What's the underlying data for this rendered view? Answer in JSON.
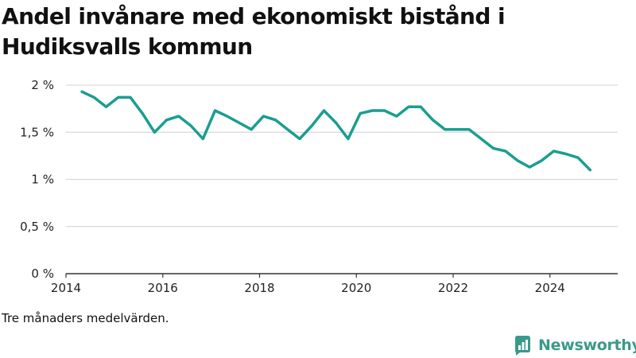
{
  "title": "Andel invånare med ekonomiskt bistånd i Hudiksvalls kommun",
  "caption": "Tre månaders medelvärden.",
  "brand": {
    "name": "Newsworthy",
    "icon": "newsworthy-logo-icon",
    "color": "#3a9a8a"
  },
  "colors": {
    "line": "#1a9e8f",
    "grid": "#d9d9d9",
    "axis": "#333333"
  },
  "chart_data": {
    "type": "line",
    "title": "Andel invånare med ekonomiskt bistånd i Hudiksvalls kommun",
    "xlabel": "",
    "ylabel": "",
    "xlim": [
      2014,
      2025.4
    ],
    "ylim": [
      0,
      2
    ],
    "x_ticks": [
      2014,
      2016,
      2018,
      2020,
      2022,
      2024
    ],
    "x_tick_labels": [
      "2014",
      "2016",
      "2018",
      "2020",
      "2022",
      "2024"
    ],
    "y_ticks": [
      0,
      0.5,
      1,
      1.5,
      2
    ],
    "y_tick_labels": [
      "0 %",
      "0,5 %",
      "1 %",
      "1,5 %",
      "2 %"
    ],
    "grid": true,
    "series": [
      {
        "x": [
          2014.33,
          2014.58,
          2014.83,
          2015.08,
          2015.33,
          2015.58,
          2015.83,
          2016.08,
          2016.33,
          2016.58,
          2016.83,
          2017.08,
          2017.33,
          2017.58,
          2017.83,
          2018.08,
          2018.33,
          2018.58,
          2018.83,
          2019.08,
          2019.33,
          2019.58,
          2019.83,
          2020.08,
          2020.33,
          2020.58,
          2020.83,
          2021.08,
          2021.33,
          2021.58,
          2021.83,
          2022.08,
          2022.33,
          2022.58,
          2022.83,
          2023.08,
          2023.33,
          2023.58,
          2023.83,
          2024.08,
          2024.33,
          2024.58,
          2024.83
        ],
        "values": [
          1.93,
          1.87,
          1.77,
          1.87,
          1.87,
          1.7,
          1.5,
          1.63,
          1.67,
          1.57,
          1.43,
          1.73,
          1.67,
          1.6,
          1.53,
          1.67,
          1.63,
          1.53,
          1.43,
          1.57,
          1.73,
          1.6,
          1.43,
          1.7,
          1.73,
          1.73,
          1.67,
          1.77,
          1.77,
          1.63,
          1.53,
          1.53,
          1.53,
          1.43,
          1.33,
          1.3,
          1.2,
          1.13,
          1.2,
          1.3,
          1.27,
          1.23,
          1.1
        ]
      }
    ]
  }
}
